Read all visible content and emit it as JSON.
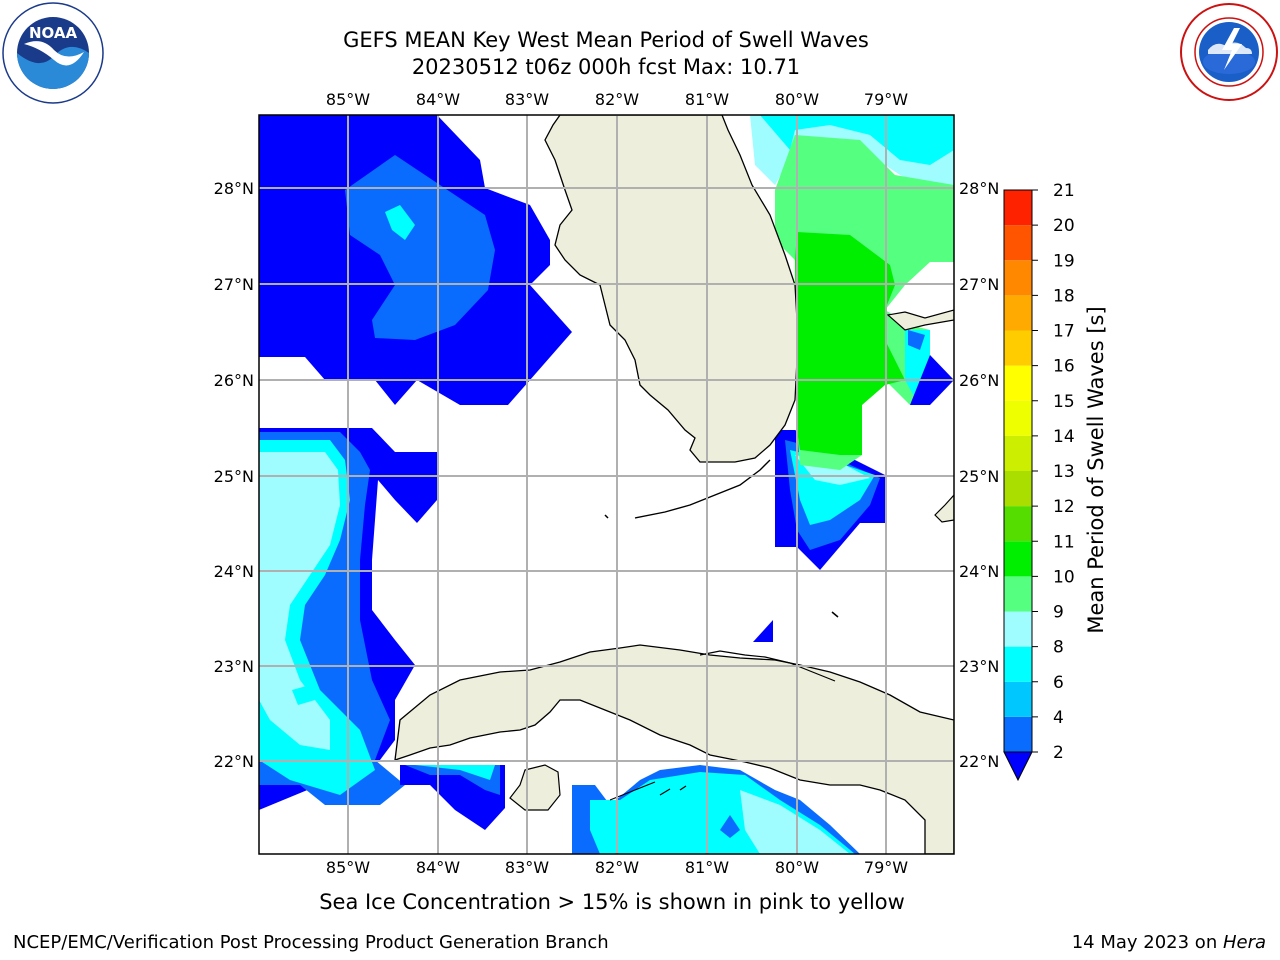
{
  "header": {
    "title_line1": "GEFS MEAN Key West Mean Period of Swell Waves",
    "title_line2": "20230512 t06z 000h fcst   Max: 10.71"
  },
  "logos": {
    "left": {
      "text": "NOAA",
      "ring_text": "NATIONAL OCEANIC AND ATMOSPHERIC ADMINISTRATION · U.S. DEPARTMENT OF COMMERCE"
    },
    "right": {
      "ring_text": "NATIONAL WEATHER SERVICE"
    }
  },
  "map": {
    "longitude_labels": [
      "85°W",
      "84°W",
      "83°W",
      "82°W",
      "81°W",
      "80°W",
      "79°W"
    ],
    "latitude_labels": [
      "28°N",
      "27°N",
      "26°N",
      "25°N",
      "24°N",
      "23°N",
      "22°N"
    ],
    "lon_range": [
      -86.0,
      -78.25
    ],
    "lat_range": [
      21.05,
      28.75
    ],
    "gridlines": true
  },
  "colorbar": {
    "title": "Mean Period of Swell Waves [s]",
    "ticks": [
      "2",
      "4",
      "6",
      "8",
      "9",
      "10",
      "11",
      "12",
      "13",
      "14",
      "15",
      "16",
      "17",
      "18",
      "19",
      "20",
      "21"
    ],
    "bands": [
      {
        "from": 2,
        "to": 4,
        "color": "#0a6cff"
      },
      {
        "from": 4,
        "to": 6,
        "color": "#00c8ff"
      },
      {
        "from": 6,
        "to": 8,
        "color": "#00ffff"
      },
      {
        "from": 8,
        "to": 9,
        "color": "#9ffcff"
      },
      {
        "from": 9,
        "to": 10,
        "color": "#55ff7f"
      },
      {
        "from": 10,
        "to": 11,
        "color": "#00ee00"
      },
      {
        "from": 11,
        "to": 12,
        "color": "#55dd00"
      },
      {
        "from": 12,
        "to": 13,
        "color": "#aadd00"
      },
      {
        "from": 13,
        "to": 14,
        "color": "#ccee00"
      },
      {
        "from": 14,
        "to": 15,
        "color": "#eeff00"
      },
      {
        "from": 15,
        "to": 16,
        "color": "#ffff00"
      },
      {
        "from": 16,
        "to": 17,
        "color": "#ffcc00"
      },
      {
        "from": 17,
        "to": 18,
        "color": "#ffaa00"
      },
      {
        "from": 18,
        "to": 19,
        "color": "#ff8800"
      },
      {
        "from": 19,
        "to": 20,
        "color": "#ff5500"
      },
      {
        "from": 20,
        "to": 21,
        "color": "#ff2200"
      }
    ],
    "under_color": "#0000ff"
  },
  "colors": {
    "land": "#eeeedd",
    "very_short": "#0000ff",
    "short": "#0a6cff",
    "medium": "#00ffff",
    "light": "#9ffcff",
    "green": "#55ff7f",
    "bright_green": "#00ee00",
    "grid": "#b0b0b0"
  },
  "note": "Sea Ice Concentration > 15% is shown in pink to yellow",
  "footer": {
    "left": "NCEP/EMC/Verification Post Processing Product Generation Branch",
    "right_date": "14 May 2023 on ",
    "right_host": "Hera"
  }
}
